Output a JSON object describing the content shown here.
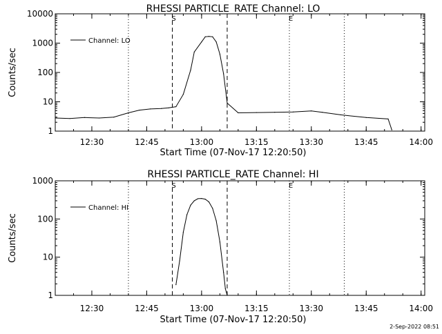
{
  "timestamp": "2-Sep-2022 08:51",
  "chart_data": [
    {
      "type": "line",
      "title": "RHESSI PARTICLE_RATE Channel: LO",
      "xlabel": "Start Time (07-Nov-17 12:20:50)",
      "ylabel": "Counts/sec",
      "yscale": "log",
      "ylim": [
        1,
        10000
      ],
      "xlim": [
        "12:20",
        "14:01"
      ],
      "x_ticks": [
        "12:30",
        "12:45",
        "13:00",
        "13:15",
        "13:30",
        "13:45",
        "14:00"
      ],
      "y_ticks": [
        "1",
        "10",
        "100",
        "1000",
        "10000"
      ],
      "legend": {
        "placement": "top-left"
      },
      "markers": [
        {
          "type": "dotted",
          "x": "12:40",
          "label": ""
        },
        {
          "type": "dashed",
          "x": "12:52",
          "label": "S"
        },
        {
          "type": "dashed",
          "x": "13:07",
          "label": ""
        },
        {
          "type": "dotted",
          "x": "13:24",
          "label": "E"
        },
        {
          "type": "dotted",
          "x": "13:39",
          "label": ""
        }
      ],
      "series": [
        {
          "name": "Channel: LO",
          "x": [
            "12:20",
            "12:24",
            "12:28",
            "12:32",
            "12:36",
            "12:40",
            "12:43",
            "12:46",
            "12:49",
            "12:51",
            "12:53",
            "12:55",
            "12:57",
            "12:58",
            "13:00",
            "13:01",
            "13:02",
            "13:03",
            "13:04",
            "13:05",
            "13:06",
            "13:07",
            "13:10",
            "13:15",
            "13:20",
            "13:25",
            "13:30",
            "13:33",
            "13:38",
            "13:45",
            "13:51",
            "13:52"
          ],
          "values": [
            2.8,
            2.7,
            2.9,
            2.8,
            3.0,
            4.2,
            5.2,
            5.7,
            5.9,
            6.2,
            6.8,
            18,
            120,
            500,
            1100,
            1650,
            1700,
            1650,
            1100,
            420,
            90,
            9,
            4.2,
            4.3,
            4.4,
            4.5,
            4.9,
            4.4,
            3.6,
            2.9,
            2.6,
            1.1
          ]
        }
      ]
    },
    {
      "type": "line",
      "title": "RHESSI PARTICLE_RATE Channel: HI",
      "xlabel": "Start Time (07-Nov-17 12:20:50)",
      "ylabel": "Counts/sec",
      "yscale": "log",
      "ylim": [
        1,
        1000
      ],
      "xlim": [
        "12:20",
        "14:01"
      ],
      "x_ticks": [
        "12:30",
        "12:45",
        "13:00",
        "13:15",
        "13:30",
        "13:45",
        "14:00"
      ],
      "y_ticks": [
        "1",
        "10",
        "100",
        "1000"
      ],
      "legend": {
        "placement": "top-left"
      },
      "markers": [
        {
          "type": "dotted",
          "x": "12:40",
          "label": ""
        },
        {
          "type": "dashed",
          "x": "12:52",
          "label": "S"
        },
        {
          "type": "dashed",
          "x": "13:07",
          "label": ""
        },
        {
          "type": "dotted",
          "x": "13:24",
          "label": "E"
        },
        {
          "type": "dotted",
          "x": "13:39",
          "label": ""
        }
      ],
      "series": [
        {
          "name": "Channel: HI",
          "x": [
            "12:53",
            "12:54",
            "12:55",
            "12:56",
            "12:57",
            "12:58",
            "12:59",
            "13:00",
            "13:01",
            "13:02",
            "13:03",
            "13:04",
            "13:05",
            "13:06",
            "13:06.5",
            "13:07"
          ],
          "values": [
            1.9,
            8,
            45,
            130,
            230,
            300,
            340,
            345,
            330,
            280,
            190,
            90,
            25,
            4,
            1.5,
            1
          ]
        }
      ]
    }
  ]
}
